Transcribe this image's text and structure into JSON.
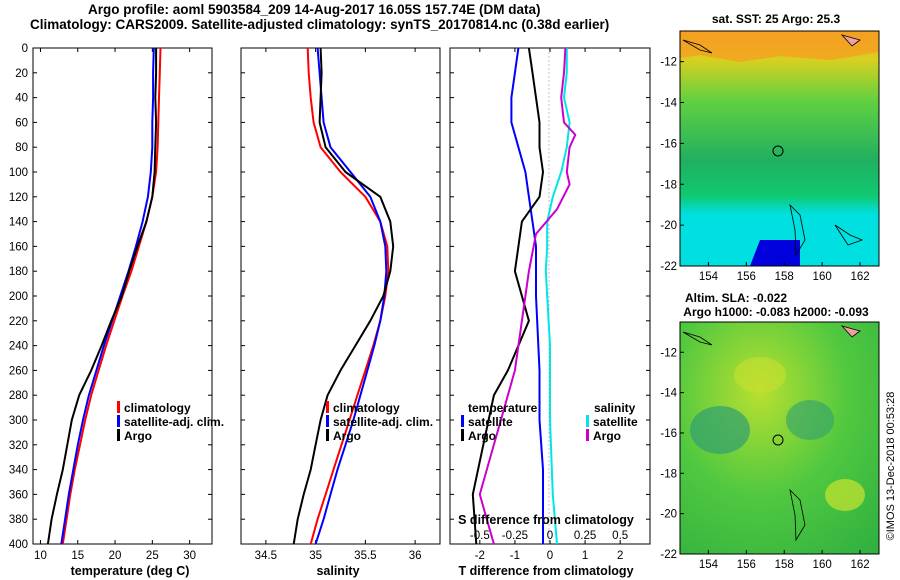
{
  "titles": {
    "line1": "Argo profile: aoml 5903584_209 14-Aug-2017 16.05S 157.74E (DM data)",
    "line2": "Climatology: CARS2009. Satellite-adjusted climatology: synTS_20170814.nc (0.38d earlier)"
  },
  "colors": {
    "climatology": "#ff0000",
    "satellite": "#0000ff",
    "argo": "#000000",
    "sat_salinity": "#00e5e5",
    "clim_salinity": "#cc00cc"
  },
  "chart_data": [
    {
      "type": "line",
      "title": "",
      "xlabel": "temperature (deg C)",
      "ylabel": "",
      "xlim": [
        9,
        33
      ],
      "ylim": [
        400,
        0
      ],
      "xticks": [
        10,
        15,
        20,
        25,
        30
      ],
      "yticks": [
        0,
        20,
        40,
        60,
        80,
        100,
        120,
        140,
        160,
        180,
        200,
        220,
        240,
        260,
        280,
        300,
        320,
        340,
        360,
        380,
        400
      ],
      "legend": {
        "position": "bottom-right",
        "entries": [
          "climatology",
          "satellite-adj. clim.",
          "Argo"
        ]
      },
      "series": [
        {
          "name": "climatology",
          "color": "red",
          "points": [
            [
              26.1,
              0
            ],
            [
              26.0,
              20
            ],
            [
              25.9,
              40
            ],
            [
              25.8,
              60
            ],
            [
              25.7,
              80
            ],
            [
              25.5,
              100
            ],
            [
              25.0,
              120
            ],
            [
              24.2,
              140
            ],
            [
              23.2,
              160
            ],
            [
              22.2,
              180
            ],
            [
              21.0,
              200
            ],
            [
              19.9,
              220
            ],
            [
              18.8,
              240
            ],
            [
              17.8,
              260
            ],
            [
              16.8,
              280
            ],
            [
              16.0,
              300
            ],
            [
              15.3,
              320
            ],
            [
              14.6,
              340
            ],
            [
              14.0,
              360
            ],
            [
              13.5,
              380
            ],
            [
              13.0,
              400
            ]
          ]
        },
        {
          "name": "satellite-adj. clim.",
          "color": "blue",
          "points": [
            [
              25.2,
              0
            ],
            [
              25.1,
              20
            ],
            [
              25.1,
              40
            ],
            [
              25.0,
              60
            ],
            [
              25.0,
              80
            ],
            [
              24.8,
              100
            ],
            [
              24.4,
              120
            ],
            [
              23.7,
              140
            ],
            [
              22.8,
              160
            ],
            [
              21.8,
              180
            ],
            [
              20.7,
              200
            ],
            [
              19.6,
              220
            ],
            [
              18.5,
              240
            ],
            [
              17.5,
              260
            ],
            [
              16.5,
              280
            ],
            [
              15.7,
              300
            ],
            [
              15.0,
              320
            ],
            [
              14.4,
              340
            ],
            [
              13.8,
              360
            ],
            [
              13.3,
              380
            ],
            [
              12.8,
              400
            ]
          ]
        },
        {
          "name": "Argo",
          "color": "black",
          "points": [
            [
              25.5,
              0
            ],
            [
              25.5,
              20
            ],
            [
              25.4,
              40
            ],
            [
              25.5,
              60
            ],
            [
              25.4,
              80
            ],
            [
              25.3,
              100
            ],
            [
              25.0,
              120
            ],
            [
              24.2,
              140
            ],
            [
              23.0,
              160
            ],
            [
              21.9,
              180
            ],
            [
              20.9,
              200
            ],
            [
              19.5,
              220
            ],
            [
              18.2,
              240
            ],
            [
              16.8,
              260
            ],
            [
              15.2,
              280
            ],
            [
              14.2,
              300
            ],
            [
              13.6,
              320
            ],
            [
              13.0,
              340
            ],
            [
              12.2,
              360
            ],
            [
              11.5,
              380
            ],
            [
              11.0,
              400
            ]
          ]
        }
      ]
    },
    {
      "type": "line",
      "title": "",
      "xlabel": "salinity",
      "ylabel": "",
      "xlim": [
        34.25,
        36.25
      ],
      "ylim": [
        400,
        0
      ],
      "xticks": [
        34.5,
        35,
        35.5,
        36
      ],
      "legend": {
        "position": "bottom-right",
        "entries": [
          "climatology",
          "satellite-adj. clim.",
          "Argo"
        ]
      },
      "series": [
        {
          "name": "climatology",
          "color": "red",
          "points": [
            [
              34.92,
              0
            ],
            [
              34.93,
              20
            ],
            [
              34.95,
              40
            ],
            [
              34.98,
              60
            ],
            [
              35.05,
              80
            ],
            [
              35.25,
              100
            ],
            [
              35.5,
              120
            ],
            [
              35.65,
              140
            ],
            [
              35.72,
              160
            ],
            [
              35.73,
              180
            ],
            [
              35.7,
              200
            ],
            [
              35.65,
              220
            ],
            [
              35.58,
              240
            ],
            [
              35.5,
              260
            ],
            [
              35.42,
              280
            ],
            [
              35.34,
              300
            ],
            [
              35.26,
              320
            ],
            [
              35.18,
              340
            ],
            [
              35.1,
              360
            ],
            [
              35.02,
              380
            ],
            [
              34.95,
              400
            ]
          ]
        },
        {
          "name": "satellite-adj. clim.",
          "color": "blue",
          "points": [
            [
              35.02,
              0
            ],
            [
              35.04,
              20
            ],
            [
              35.06,
              40
            ],
            [
              35.08,
              60
            ],
            [
              35.15,
              80
            ],
            [
              35.35,
              100
            ],
            [
              35.55,
              120
            ],
            [
              35.65,
              140
            ],
            [
              35.7,
              160
            ],
            [
              35.71,
              180
            ],
            [
              35.69,
              200
            ],
            [
              35.65,
              220
            ],
            [
              35.59,
              240
            ],
            [
              35.52,
              260
            ],
            [
              35.45,
              280
            ],
            [
              35.38,
              300
            ],
            [
              35.3,
              320
            ],
            [
              35.22,
              340
            ],
            [
              35.15,
              360
            ],
            [
              35.08,
              380
            ],
            [
              35.0,
              400
            ]
          ]
        },
        {
          "name": "Argo",
          "color": "black",
          "points": [
            [
              35.05,
              0
            ],
            [
              35.06,
              20
            ],
            [
              35.05,
              40
            ],
            [
              35.04,
              60
            ],
            [
              35.1,
              80
            ],
            [
              35.3,
              100
            ],
            [
              35.65,
              120
            ],
            [
              35.75,
              140
            ],
            [
              35.78,
              160
            ],
            [
              35.75,
              180
            ],
            [
              35.68,
              200
            ],
            [
              35.55,
              220
            ],
            [
              35.4,
              240
            ],
            [
              35.25,
              260
            ],
            [
              35.12,
              280
            ],
            [
              35.05,
              300
            ],
            [
              35.0,
              320
            ],
            [
              34.95,
              340
            ],
            [
              34.88,
              360
            ],
            [
              34.82,
              380
            ],
            [
              34.78,
              400
            ]
          ]
        }
      ]
    },
    {
      "type": "line",
      "title": "",
      "xlabel": "T difference from climatology",
      "secondary_xlabel": "S difference from climatology",
      "xlim": [
        -2.85,
        2.85
      ],
      "ylim": [
        400,
        0
      ],
      "xticks": [
        -2,
        -1,
        0,
        1,
        2
      ],
      "secondary_xticks_labels": [
        "-0.5",
        "-0.25",
        "0",
        "0.25",
        "0.5"
      ],
      "secondary_xticks_values": [
        -0.5,
        -0.25,
        0,
        0.25,
        0.5
      ],
      "legend": {
        "groups": [
          {
            "heading": "temperature",
            "entries": [
              "satellite",
              "Argo"
            ]
          },
          {
            "heading": "salinity",
            "entries": [
              "satellite",
              "Argo"
            ]
          }
        ]
      },
      "series": [
        {
          "name": "temperature satellite",
          "color": "blue",
          "points": [
            [
              -0.9,
              0
            ],
            [
              -1.0,
              20
            ],
            [
              -1.1,
              40
            ],
            [
              -1.1,
              60
            ],
            [
              -0.9,
              80
            ],
            [
              -0.7,
              100
            ],
            [
              -0.6,
              120
            ],
            [
              -0.5,
              140
            ],
            [
              -0.4,
              160
            ],
            [
              -0.4,
              200
            ],
            [
              -0.3,
              260
            ],
            [
              -0.3,
              300
            ],
            [
              -0.2,
              340
            ],
            [
              -0.2,
              400
            ]
          ]
        },
        {
          "name": "temperature Argo",
          "color": "black",
          "points": [
            [
              -0.6,
              0
            ],
            [
              -0.5,
              20
            ],
            [
              -0.4,
              40
            ],
            [
              -0.3,
              60
            ],
            [
              -0.3,
              80
            ],
            [
              -0.2,
              100
            ],
            [
              -0.3,
              120
            ],
            [
              -0.8,
              140
            ],
            [
              -1.0,
              180
            ],
            [
              -0.6,
              220
            ],
            [
              -1.2,
              260
            ],
            [
              -1.6,
              280
            ],
            [
              -1.9,
              320
            ],
            [
              -2.2,
              360
            ],
            [
              -2.1,
              400
            ]
          ]
        },
        {
          "name": "salinity satellite",
          "color": "cyan",
          "points": [
            [
              0.12,
              0
            ],
            [
              0.12,
              20
            ],
            [
              0.1,
              40
            ],
            [
              0.14,
              60
            ],
            [
              0.12,
              80
            ],
            [
              0.08,
              100
            ],
            [
              0.02,
              120
            ],
            [
              -0.02,
              140
            ],
            [
              -0.02,
              160
            ],
            [
              -0.03,
              180
            ],
            [
              -0.02,
              200
            ],
            [
              0.0,
              240
            ],
            [
              0.0,
              300
            ],
            [
              0.02,
              360
            ],
            [
              0.05,
              400
            ]
          ]
        },
        {
          "name": "salinity Argo",
          "color": "magenta",
          "points": [
            [
              0.11,
              0
            ],
            [
              0.1,
              20
            ],
            [
              0.08,
              40
            ],
            [
              0.1,
              60
            ],
            [
              0.18,
              70
            ],
            [
              0.14,
              80
            ],
            [
              0.12,
              100
            ],
            [
              0.14,
              110
            ],
            [
              0.05,
              130
            ],
            [
              -0.1,
              150
            ],
            [
              -0.15,
              180
            ],
            [
              -0.2,
              220
            ],
            [
              -0.25,
              260
            ],
            [
              -0.35,
              300
            ],
            [
              -0.45,
              340
            ],
            [
              -0.5,
              360
            ],
            [
              -0.45,
              380
            ],
            [
              -0.4,
              400
            ]
          ]
        }
      ]
    },
    {
      "type": "heatmap",
      "title": "sat. SST: 25 Argo: 25.3",
      "xlim": [
        152.5,
        163
      ],
      "ylim": [
        -22,
        -10.5
      ],
      "xticks": [
        154,
        156,
        158,
        160,
        162
      ],
      "yticks": [
        -12,
        -14,
        -16,
        -18,
        -20,
        -22
      ],
      "marker": {
        "lon": 157.74,
        "lat": -16.05
      }
    },
    {
      "type": "heatmap",
      "title": "Altim. SLA: -0.022",
      "subtitle": "Argo h1000: -0.083 h2000: -0.093",
      "xlim": [
        152.5,
        163
      ],
      "ylim": [
        -22,
        -10.5
      ],
      "xticks": [
        154,
        156,
        158,
        160,
        162
      ],
      "yticks": [
        -12,
        -14,
        -16,
        -18,
        -20,
        -22
      ],
      "marker": {
        "lon": 157.74,
        "lat": -16.05
      }
    }
  ],
  "credit": "©IMOS 13-Dec-2018 00:53:28"
}
